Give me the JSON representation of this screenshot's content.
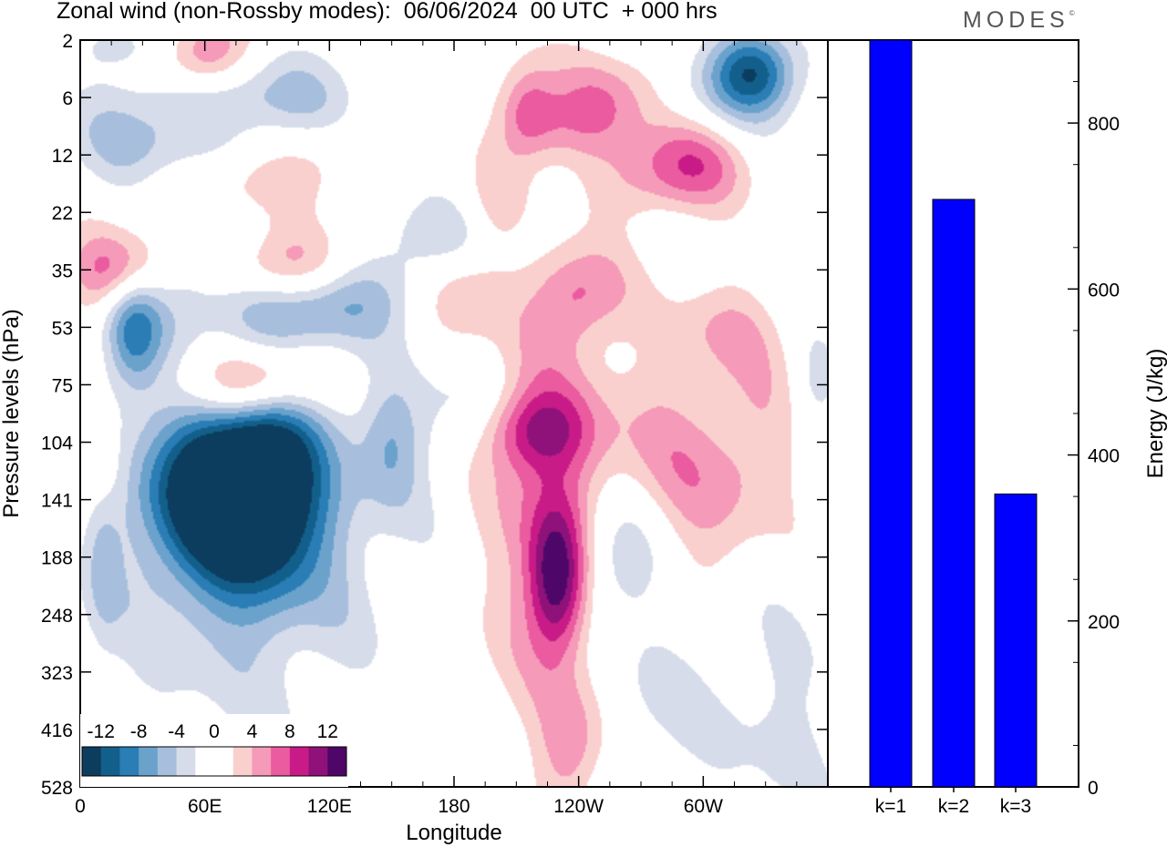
{
  "title": "Zonal wind (non-Rossby modes):  06/06/2024  00 UTC  + 000 hrs",
  "logo": "MODES",
  "logo_mark": "©",
  "chart_data": [
    {
      "type": "heatmap",
      "title": "Zonal wind (non-Rossby modes):  06/06/2024  00 UTC  + 000 hrs",
      "xlabel": "Longitude",
      "ylabel": "Pressure levels (hPa)",
      "x_ticks": [
        "0",
        "60E",
        "120E",
        "180",
        "120W",
        "60W"
      ],
      "x_tick_values": [
        0,
        60,
        120,
        180,
        240,
        300
      ],
      "xlim": [
        0,
        360
      ],
      "y_ticks": [
        "2",
        "6",
        "12",
        "22",
        "35",
        "53",
        "75",
        "104",
        "141",
        "188",
        "248",
        "323",
        "416",
        "528"
      ],
      "colorbar": {
        "labels": [
          "-12",
          "-8",
          "-4",
          "0",
          "4",
          "8",
          "12"
        ],
        "colors": [
          "#0c3d5e",
          "#135f8c",
          "#2a7db5",
          "#6aa2cc",
          "#a7bfdd",
          "#d6dcea",
          "#ffffff",
          "#ffffff",
          "#fad0ce",
          "#f59ab8",
          "#ea5b9f",
          "#c81b87",
          "#8e1279",
          "#4e0768"
        ]
      },
      "features": [
        {
          "lon": 65,
          "lev": 7.9,
          "v": -12,
          "lw": 22,
          "lh": 1.0
        },
        {
          "lon": 90,
          "lev": 7.7,
          "v": -10,
          "lw": 18,
          "lh": 1.2
        },
        {
          "lon": 82,
          "lev": 7.8,
          "v": -6,
          "lw": 42,
          "lh": 1.6
        },
        {
          "lon": 75,
          "lev": 10.0,
          "v": -2.5,
          "lw": 45,
          "lh": 1.8
        },
        {
          "lon": 25,
          "lev": 5.0,
          "v": -9,
          "lw": 10,
          "lh": 0.8
        },
        {
          "lon": 10,
          "lev": 9.0,
          "v": -3,
          "lw": 6,
          "lh": 1.2
        },
        {
          "lon": 48,
          "lev": 4.0,
          "v": -4,
          "lw": 15,
          "lh": 0.6
        },
        {
          "lon": 102,
          "lev": 4.7,
          "v": -6,
          "lw": 28,
          "lh": 0.5
        },
        {
          "lon": 160,
          "lev": 3.5,
          "v": -5,
          "lw": 35,
          "lh": 0.5
        },
        {
          "lon": 150,
          "lev": 4.3,
          "v": -3,
          "lw": 40,
          "lh": 0.5
        },
        {
          "lon": 28,
          "lev": 1.8,
          "v": -4,
          "lw": 30,
          "lh": 0.6
        },
        {
          "lon": 55,
          "lev": 0.9,
          "v": -4,
          "lw": 25,
          "lh": 0.5
        },
        {
          "lon": 110,
          "lev": 0.9,
          "v": -4,
          "lw": 25,
          "lh": 0.6
        },
        {
          "lon": 20,
          "lev": 0.1,
          "v": -3,
          "lw": 15,
          "lh": 0.3
        },
        {
          "lon": 325,
          "lev": 0.5,
          "v": -10,
          "lw": 14,
          "lh": 0.5
        },
        {
          "lon": 312,
          "lev": 0.9,
          "v": -3,
          "lw": 30,
          "lh": 0.6
        },
        {
          "lon": 258,
          "lev": 9.0,
          "v": -7,
          "lw": 20,
          "lh": 0.9
        },
        {
          "lon": 150,
          "lev": 7.0,
          "v": -4,
          "lw": 10,
          "lh": 0.8
        },
        {
          "lon": 185,
          "lev": 6.5,
          "v": -3,
          "lw": 18,
          "lh": 0.7
        },
        {
          "lon": 275,
          "lev": 11.5,
          "v": -2.5,
          "lw": 20,
          "lh": 1.0
        },
        {
          "lon": 335,
          "lev": 11.8,
          "v": -2.5,
          "lw": 25,
          "lh": 1.6
        },
        {
          "lon": 355,
          "lev": 6.0,
          "v": -3,
          "lw": 8,
          "lh": 0.6
        },
        {
          "lon": 230,
          "lev": 9.4,
          "v": 12,
          "lw": 10,
          "lh": 0.9
        },
        {
          "lon": 225,
          "lev": 8.0,
          "v": 6,
          "lw": 22,
          "lh": 2.3
        },
        {
          "lon": 218,
          "lev": 6.8,
          "v": 7,
          "lw": 18,
          "lh": 0.5
        },
        {
          "lon": 237,
          "lev": 12.3,
          "v": 5,
          "lw": 12,
          "lh": 0.8
        },
        {
          "lon": 82,
          "lev": 6.0,
          "v": 11,
          "lw": 22,
          "lh": 0.5
        },
        {
          "lon": 20,
          "lev": 4.0,
          "v": 9,
          "lw": 18,
          "lh": 0.5
        },
        {
          "lon": 100,
          "lev": 4.0,
          "v": 7,
          "lw": 22,
          "lh": 0.5
        },
        {
          "lon": 135,
          "lev": 3.5,
          "v": 3,
          "lw": 25,
          "lh": 0.5
        },
        {
          "lon": 185,
          "lev": 4.3,
          "v": 6,
          "lw": 16,
          "lh": 0.6
        },
        {
          "lon": 240,
          "lev": 4.4,
          "v": 6,
          "lw": 16,
          "lh": 0.6
        },
        {
          "lon": 280,
          "lev": 2.5,
          "v": 4,
          "lw": 25,
          "lh": 0.5
        },
        {
          "lon": 215,
          "lev": 1.2,
          "v": 6,
          "lw": 10,
          "lh": 0.6
        },
        {
          "lon": 260,
          "lev": 0.9,
          "v": 5,
          "lw": 20,
          "lh": 0.6
        },
        {
          "lon": 60,
          "lev": 0.3,
          "v": 8,
          "lw": 15,
          "lh": 0.5
        },
        {
          "lon": 233,
          "lev": 1.5,
          "v": 4,
          "lw": 18,
          "lh": 0.5
        },
        {
          "lon": 295,
          "lev": 2.0,
          "v": 5,
          "lw": 20,
          "lh": 0.5
        },
        {
          "lon": 285,
          "lev": 7.8,
          "v": 5,
          "lw": 25,
          "lh": 1.5
        },
        {
          "lon": 325,
          "lev": 7.0,
          "v": 3,
          "lw": 18,
          "lh": 1.3
        },
        {
          "lon": 10,
          "lev": 7.5,
          "v": 4,
          "lw": 8,
          "lh": 0.6
        },
        {
          "lon": 310,
          "lev": 5.0,
          "v": 3,
          "lw": 20,
          "lh": 0.6
        },
        {
          "lon": 200,
          "lev": 3.0,
          "v": 3,
          "lw": 10,
          "lh": 0.6
        },
        {
          "lon": 115,
          "lev": 2.0,
          "v": 3,
          "lw": 15,
          "lh": 0.5
        },
        {
          "lon": 65,
          "lev": 2.6,
          "v": 3,
          "lw": 25,
          "lh": 0.4
        }
      ]
    },
    {
      "type": "bar",
      "categories": [
        "k=1",
        "k=2",
        "k=3"
      ],
      "values": [
        900,
        708,
        353
      ],
      "ylabel": "Energy (J/kg)",
      "ylim": [
        0,
        900
      ],
      "y_ticks": [
        0,
        200,
        400,
        600,
        800
      ],
      "bar_color": "#0000ff"
    }
  ]
}
